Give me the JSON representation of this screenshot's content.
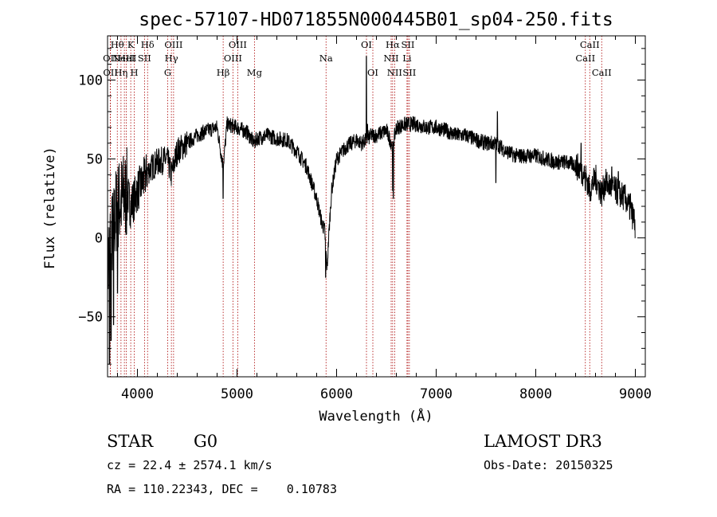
{
  "title": "spec-57107-HD071855N000445B01_sp04-250.fits",
  "info": {
    "object_class": "STAR",
    "subclass": "G0",
    "survey": "LAMOST DR3",
    "cz": "cz = 22.4 ± 2574.1 km/s",
    "obs_date": "Obs-Date: 20150325",
    "radec": "RA = 110.22343, DEC =    0.10783"
  },
  "chart_data": {
    "type": "line",
    "xlabel": "Wavelength (Å)",
    "ylabel": "Flux (relative)",
    "xlim": [
      3700,
      9100
    ],
    "ylim": [
      -88,
      128
    ],
    "xticks": [
      4000,
      5000,
      6000,
      7000,
      8000,
      9000
    ],
    "xtick_labels": [
      "4000",
      "5000",
      "6000",
      "7000",
      "8000",
      "9000"
    ],
    "yticks": [
      -50,
      0,
      50,
      100
    ],
    "ytick_labels": [
      "−50",
      "0",
      "50",
      "100"
    ],
    "line_color": "#000000",
    "marker_color": "#aa0000",
    "spectrum_anchors": [
      [
        3700,
        -20
      ],
      [
        3720,
        -5
      ],
      [
        3740,
        0
      ],
      [
        3760,
        5
      ],
      [
        3780,
        15
      ],
      [
        3800,
        20
      ],
      [
        3850,
        25
      ],
      [
        3900,
        28
      ],
      [
        3930,
        20
      ],
      [
        3970,
        25
      ],
      [
        4000,
        30
      ],
      [
        4050,
        35
      ],
      [
        4100,
        42
      ],
      [
        4150,
        45
      ],
      [
        4200,
        48
      ],
      [
        4300,
        50
      ],
      [
        4340,
        40
      ],
      [
        4400,
        55
      ],
      [
        4500,
        60
      ],
      [
        4600,
        65
      ],
      [
        4700,
        68
      ],
      [
        4800,
        70
      ],
      [
        4861,
        45
      ],
      [
        4900,
        72
      ],
      [
        5000,
        70
      ],
      [
        5100,
        67
      ],
      [
        5172,
        60
      ],
      [
        5200,
        63
      ],
      [
        5300,
        65
      ],
      [
        5400,
        63
      ],
      [
        5500,
        62
      ],
      [
        5600,
        55
      ],
      [
        5700,
        45
      ],
      [
        5750,
        35
      ],
      [
        5800,
        25
      ],
      [
        5850,
        10
      ],
      [
        5880,
        5
      ],
      [
        5895,
        -10
      ],
      [
        5905,
        -20
      ],
      [
        5920,
        0
      ],
      [
        5950,
        30
      ],
      [
        6000,
        50
      ],
      [
        6100,
        58
      ],
      [
        6200,
        62
      ],
      [
        6250,
        60
      ],
      [
        6300,
        62
      ],
      [
        6350,
        65
      ],
      [
        6400,
        65
      ],
      [
        6500,
        68
      ],
      [
        6563,
        58
      ],
      [
        6600,
        70
      ],
      [
        6700,
        72
      ],
      [
        6800,
        72
      ],
      [
        6900,
        70
      ],
      [
        7000,
        70
      ],
      [
        7100,
        68
      ],
      [
        7200,
        65
      ],
      [
        7300,
        65
      ],
      [
        7400,
        62
      ],
      [
        7500,
        60
      ],
      [
        7600,
        60
      ],
      [
        7700,
        55
      ],
      [
        7800,
        52
      ],
      [
        7900,
        52
      ],
      [
        8000,
        52
      ],
      [
        8100,
        50
      ],
      [
        8200,
        48
      ],
      [
        8300,
        48
      ],
      [
        8400,
        46
      ],
      [
        8500,
        40
      ],
      [
        8542,
        30
      ],
      [
        8600,
        38
      ],
      [
        8662,
        28
      ],
      [
        8700,
        35
      ],
      [
        8800,
        30
      ],
      [
        8900,
        25
      ],
      [
        9000,
        10
      ]
    ],
    "spectrum_spikes": [
      [
        6300,
        115
      ],
      [
        6310,
        72
      ],
      [
        7615,
        80
      ],
      [
        8455,
        60
      ],
      [
        8763,
        45
      ],
      [
        8830,
        42
      ],
      [
        8950,
        28
      ]
    ],
    "spectrum_dips": [
      [
        3720,
        -80
      ],
      [
        3735,
        -65
      ],
      [
        3760,
        -55
      ],
      [
        3800,
        -35
      ],
      [
        4861,
        25
      ],
      [
        5890,
        -25
      ],
      [
        6563,
        30
      ],
      [
        6570,
        25
      ],
      [
        7600,
        35
      ],
      [
        8498,
        30
      ],
      [
        9000,
        0
      ]
    ],
    "lines": [
      {
        "wave": 3727,
        "label": "OII",
        "row": 1
      },
      {
        "wave": 3729,
        "label": "OII",
        "row": 2
      },
      {
        "wave": 3798,
        "label": "Hθ",
        "row": 0
      },
      {
        "wave": 3835,
        "label": "Hη",
        "row": 2
      },
      {
        "wave": 3869,
        "label": "NeIII",
        "row": 1
      },
      {
        "wave": 3889,
        "label": "HeI",
        "row": 1
      },
      {
        "wave": 3933,
        "label": "K",
        "row": 0
      },
      {
        "wave": 3968,
        "label": "H",
        "row": 2
      },
      {
        "wave": 4071,
        "label": "SII",
        "row": 1
      },
      {
        "wave": 4102,
        "label": "Hδ",
        "row": 0
      },
      {
        "wave": 4304,
        "label": "G",
        "row": 2
      },
      {
        "wave": 4341,
        "label": "Hγ",
        "row": 1
      },
      {
        "wave": 4363,
        "label": "OIII",
        "row": 0
      },
      {
        "wave": 4861,
        "label": "Hβ",
        "row": 2
      },
      {
        "wave": 4959,
        "label": "OIII",
        "row": 1
      },
      {
        "wave": 5007,
        "label": "OIII",
        "row": 0
      },
      {
        "wave": 5175,
        "label": "Mg",
        "row": 2
      },
      {
        "wave": 5894,
        "label": "Na",
        "row": 1
      },
      {
        "wave": 6300,
        "label": "OI",
        "row": 0
      },
      {
        "wave": 6364,
        "label": "OI",
        "row": 2
      },
      {
        "wave": 6548,
        "label": "NII",
        "row": 1
      },
      {
        "wave": 6563,
        "label": "Hα",
        "row": 0
      },
      {
        "wave": 6583,
        "label": "NII",
        "row": 2
      },
      {
        "wave": 6707,
        "label": "Li",
        "row": 1
      },
      {
        "wave": 6716,
        "label": "SII",
        "row": 0
      },
      {
        "wave": 6731,
        "label": "SII",
        "row": 2
      },
      {
        "wave": 8498,
        "label": "CaII",
        "row": 1
      },
      {
        "wave": 8542,
        "label": "CaII",
        "row": 0
      },
      {
        "wave": 8662,
        "label": "CaII",
        "row": 2
      }
    ]
  }
}
